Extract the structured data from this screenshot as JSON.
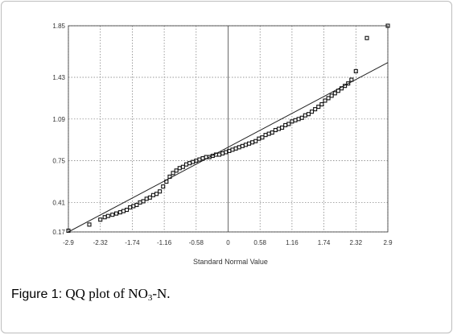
{
  "caption": {
    "figure_label": "Figure 1:",
    "text_prefix": "QQ plot of NO",
    "subscript": "3",
    "text_suffix": "-N."
  },
  "chart_data": {
    "type": "scatter",
    "title": "",
    "xlabel": "Standard Normal Value",
    "ylabel": "",
    "xlim": [
      -2.9,
      2.9
    ],
    "ylim": [
      0.17,
      1.85
    ],
    "x_ticks": [
      -2.9,
      -2.32,
      -1.74,
      -1.16,
      -0.58,
      0,
      0.58,
      1.16,
      1.74,
      2.32,
      2.9
    ],
    "x_tick_labels": [
      "-2.9",
      "-2.32",
      "-1.74",
      "-1.16",
      "-0.58",
      "0",
      "0.58",
      "1.16",
      "1.74",
      "2.32",
      "2.9"
    ],
    "y_ticks": [
      0.17,
      0.41,
      0.75,
      1.09,
      1.43,
      1.85
    ],
    "y_tick_labels": [
      "0.17",
      "0.41",
      "0.75",
      "1.09",
      "1.43",
      "1.85"
    ],
    "grid": true,
    "grid_style": "dotted",
    "reference_line": {
      "x": [
        -2.9,
        2.9
      ],
      "y": [
        0.17,
        1.55
      ]
    },
    "series": [
      {
        "marker": "square",
        "x": [
          -2.9,
          -2.52,
          -2.32,
          -2.24,
          -2.18,
          -2.1,
          -2.03,
          -1.96,
          -1.9,
          -1.84,
          -1.78,
          -1.72,
          -1.66,
          -1.6,
          -1.54,
          -1.48,
          -1.42,
          -1.36,
          -1.3,
          -1.24,
          -1.18,
          -1.12,
          -1.06,
          -1.0,
          -0.94,
          -0.88,
          -0.82,
          -0.76,
          -0.7,
          -0.64,
          -0.58,
          -0.52,
          -0.46,
          -0.4,
          -0.34,
          -0.28,
          -0.22,
          -0.16,
          -0.1,
          -0.04,
          0.02,
          0.08,
          0.14,
          0.2,
          0.26,
          0.32,
          0.38,
          0.44,
          0.5,
          0.56,
          0.62,
          0.68,
          0.74,
          0.8,
          0.86,
          0.92,
          0.98,
          1.04,
          1.1,
          1.16,
          1.22,
          1.28,
          1.34,
          1.4,
          1.46,
          1.52,
          1.58,
          1.64,
          1.7,
          1.76,
          1.82,
          1.88,
          1.94,
          2.0,
          2.06,
          2.12,
          2.18,
          2.24,
          2.32,
          2.52,
          2.9
        ],
        "y": [
          0.18,
          0.23,
          0.27,
          0.29,
          0.3,
          0.31,
          0.32,
          0.33,
          0.34,
          0.35,
          0.37,
          0.38,
          0.39,
          0.41,
          0.42,
          0.44,
          0.45,
          0.47,
          0.48,
          0.5,
          0.54,
          0.58,
          0.62,
          0.65,
          0.67,
          0.69,
          0.7,
          0.72,
          0.73,
          0.74,
          0.75,
          0.76,
          0.77,
          0.78,
          0.78,
          0.79,
          0.8,
          0.8,
          0.81,
          0.82,
          0.83,
          0.84,
          0.85,
          0.86,
          0.87,
          0.88,
          0.89,
          0.9,
          0.91,
          0.93,
          0.94,
          0.96,
          0.97,
          0.98,
          1.0,
          1.01,
          1.02,
          1.04,
          1.05,
          1.07,
          1.08,
          1.09,
          1.1,
          1.12,
          1.13,
          1.15,
          1.17,
          1.19,
          1.21,
          1.24,
          1.26,
          1.28,
          1.3,
          1.32,
          1.34,
          1.36,
          1.38,
          1.41,
          1.48,
          1.75,
          1.85
        ]
      }
    ]
  }
}
